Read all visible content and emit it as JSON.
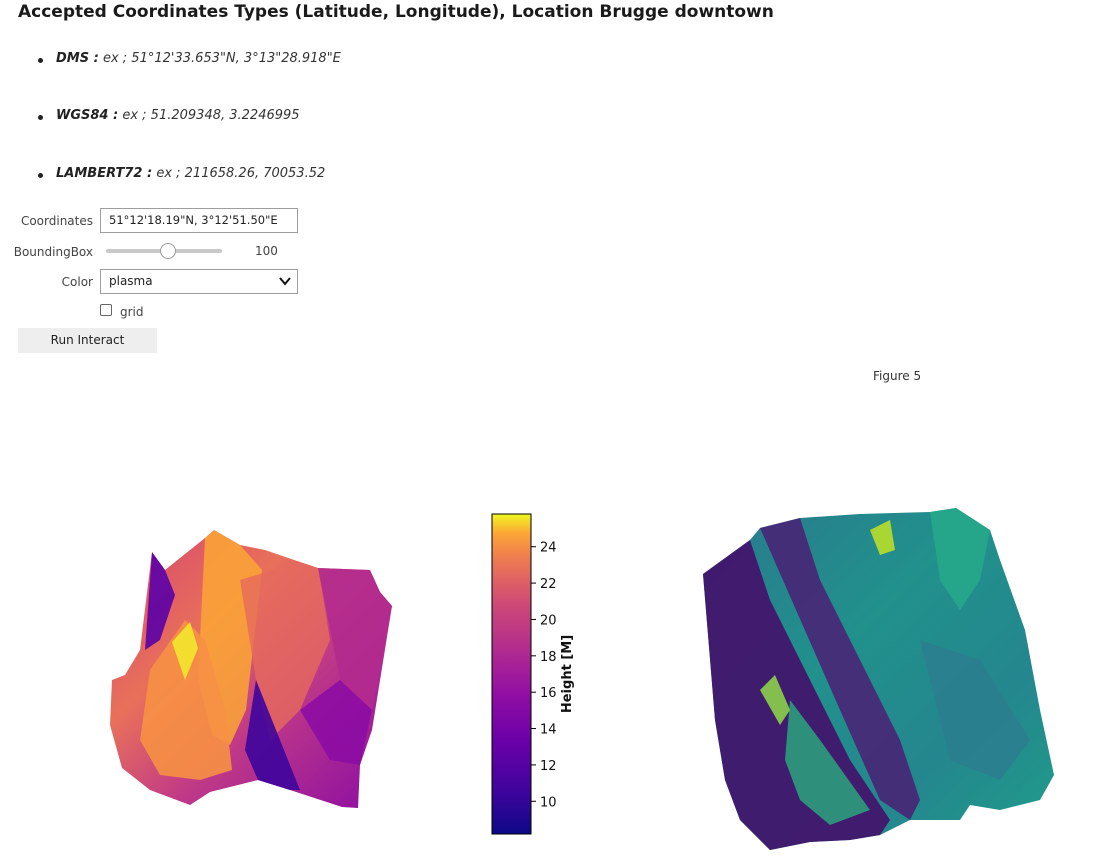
{
  "header": {
    "title": "Accepted Coordinates Types (Latitude, Longitude), Location Brugge downtown"
  },
  "coordinate_types": [
    {
      "name": "DMS :",
      "example": "ex ; 51°12'33.653\"N, 3°13\"28.918\"E"
    },
    {
      "name": "WGS84 :",
      "example": "ex ; 51.209348, 3.2246995"
    },
    {
      "name": "LAMBERT72 :",
      "example": "ex ; 211658.26, 70053.52"
    }
  ],
  "form": {
    "coordinates_label": "Coordinates",
    "coordinates_value": "51°12'18.19\"N, 3°12'51.50\"E",
    "bounding_box_label": "BoundingBox",
    "bounding_box_value": "100",
    "bounding_box_fraction": 0.5,
    "color_label": "Color",
    "color_value": "plasma",
    "grid_label": "grid",
    "grid_checked": false,
    "run_label": "Run Interact"
  },
  "figure": {
    "title": "Figure 5",
    "colorbar_label": "Height [M]",
    "colorbar_ticks": [
      "10",
      "12",
      "14",
      "16",
      "18",
      "20",
      "22",
      "24"
    ],
    "colorbar_range": [
      8.2,
      25.8
    ],
    "colormap": "plasma",
    "colors": {
      "plasma_low": "#0d0887",
      "plasma_mid": "#cc4778",
      "plasma_high": "#f0f921",
      "viridis_low": "#440154",
      "viridis_mid": "#21918c",
      "viridis_high": "#fde725"
    }
  }
}
